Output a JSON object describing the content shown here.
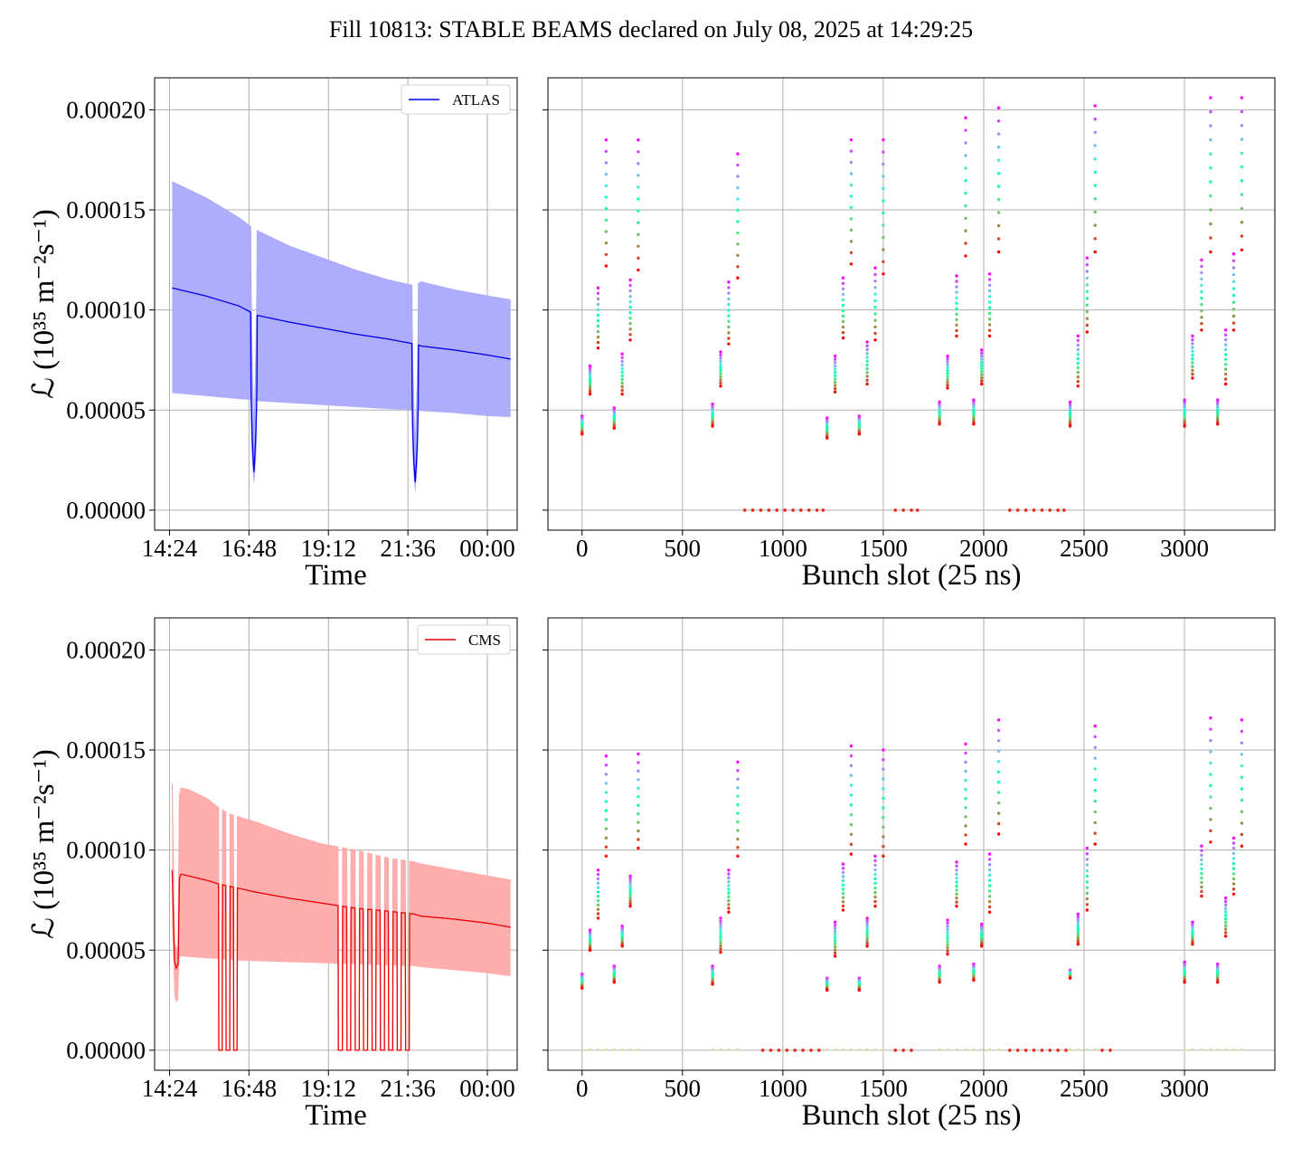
{
  "title": "Fill 10813: STABLE BEAMS declared on July 08, 2025 at 14:29:25",
  "colors": {
    "atlas_line": "#0000ee",
    "atlas_band": "#a9a9fb",
    "cms_line": "#ee0000",
    "cms_band": "#ffaaaa",
    "grid": "#b0b0b0"
  },
  "chart_data": [
    {
      "id": "atlas-time",
      "type": "line",
      "xlabel": "Time",
      "ylabel": "ℒ (10³⁵ m⁻²s⁻¹)",
      "x_ticks": [
        "14:24",
        "16:48",
        "19:12",
        "21:36",
        "00:00"
      ],
      "x_tick_hours": [
        14.4,
        16.8,
        19.2,
        21.6,
        24.0
      ],
      "xlim_hours": [
        13.95,
        24.9
      ],
      "y_ticks": [
        "0.00000",
        "0.00005",
        "0.00010",
        "0.00015",
        "0.00020"
      ],
      "y_tick_values": [
        0.0,
        5e-05,
        0.0001,
        0.00015,
        0.0002
      ],
      "ylim": [
        -1e-05,
        0.000216
      ],
      "grid": true,
      "legend": {
        "label": "ATLAS",
        "position": "top-right"
      },
      "series": [
        {
          "name": "ATLAS",
          "role": "mean",
          "x": [
            14.48,
            15.5,
            16.5,
            16.9,
            17.0,
            18.0,
            19.0,
            20.0,
            21.0,
            21.8,
            22.0,
            23.0,
            24.0,
            24.7
          ],
          "y": [
            0.000111,
            0.000107,
            0.000102,
            9.85e-05,
            9.75e-05,
            9.4e-05,
            9.1e-05,
            8.8e-05,
            8.55e-05,
            8.3e-05,
            8.2e-05,
            8e-05,
            7.75e-05,
            7.55e-05
          ]
        },
        {
          "name": "",
          "role": "band-upper",
          "x": [
            14.48,
            15.5,
            16.5,
            16.9,
            17.0,
            18.0,
            19.0,
            20.0,
            21.0,
            21.8,
            22.0,
            23.0,
            24.0,
            24.7
          ],
          "y": [
            0.000164,
            0.000156,
            0.000146,
            0.000141,
            0.00014,
            0.000132,
            0.000126,
            0.00012,
            0.000115,
            0.000112,
            0.000114,
            0.00011,
            0.000107,
            0.000105
          ]
        },
        {
          "name": "",
          "role": "band-lower",
          "x": [
            14.48,
            15.5,
            16.5,
            16.9,
            17.0,
            18.0,
            19.0,
            20.0,
            21.0,
            21.8,
            22.0,
            23.0,
            24.0,
            24.7
          ],
          "y": [
            5.85e-05,
            5.7e-05,
            5.55e-05,
            5.5e-05,
            5.45e-05,
            5.35e-05,
            5.25e-05,
            5.15e-05,
            5.05e-05,
            5e-05,
            4.95e-05,
            4.85e-05,
            4.7e-05,
            4.65e-05
          ]
        }
      ],
      "dips": [
        {
          "x_start": 16.85,
          "x_end": 17.05,
          "min_mean": 1.9e-05,
          "min_lower": 1.3e-05
        },
        {
          "x_start": 21.72,
          "x_end": 21.92,
          "min_mean": 1.4e-05,
          "min_lower": 9e-06
        }
      ]
    },
    {
      "id": "atlas-bunch",
      "type": "scatter",
      "xlabel": "Bunch slot (25 ns)",
      "x_ticks": [
        "0",
        "500",
        "1000",
        "1500",
        "2000",
        "2500",
        "3000"
      ],
      "x_tick_values": [
        0,
        500,
        1000,
        1500,
        2000,
        2500,
        3000
      ],
      "xlim": [
        -170,
        3450
      ],
      "ylim": [
        -1e-05,
        0.000216
      ],
      "grid": true,
      "colormap": "rainbow",
      "trains": [
        {
          "x": 0,
          "min": 3.8e-05,
          "max": 4.7e-05
        },
        {
          "x": 40,
          "min": 5.8e-05,
          "max": 7.2e-05
        },
        {
          "x": 80,
          "min": 8.1e-05,
          "max": 0.000111
        },
        {
          "x": 120,
          "min": 0.000122,
          "max": 0.000185
        },
        {
          "x": 160,
          "min": 4.1e-05,
          "max": 5.1e-05
        },
        {
          "x": 200,
          "min": 5.8e-05,
          "max": 7.8e-05
        },
        {
          "x": 240,
          "min": 8.5e-05,
          "max": 0.000115
        },
        {
          "x": 280,
          "min": 0.00012,
          "max": 0.000185
        },
        {
          "x": 650,
          "min": 4.2e-05,
          "max": 5.3e-05
        },
        {
          "x": 690,
          "min": 6.2e-05,
          "max": 7.9e-05
        },
        {
          "x": 730,
          "min": 8.3e-05,
          "max": 0.000114
        },
        {
          "x": 775,
          "min": 0.000116,
          "max": 0.000178
        },
        {
          "x": 1220,
          "min": 3.6e-05,
          "max": 4.6e-05
        },
        {
          "x": 1260,
          "min": 5.9e-05,
          "max": 7.7e-05
        },
        {
          "x": 1300,
          "min": 8.6e-05,
          "max": 0.000116
        },
        {
          "x": 1340,
          "min": 0.000123,
          "max": 0.000185
        },
        {
          "x": 1380,
          "min": 3.8e-05,
          "max": 4.7e-05
        },
        {
          "x": 1420,
          "min": 6.3e-05,
          "max": 8.4e-05
        },
        {
          "x": 1460,
          "min": 8.5e-05,
          "max": 0.000121
        },
        {
          "x": 1500,
          "min": 0.000118,
          "max": 0.000185
        },
        {
          "x": 1780,
          "min": 4.3e-05,
          "max": 5.4e-05
        },
        {
          "x": 1820,
          "min": 6.1e-05,
          "max": 7.7e-05
        },
        {
          "x": 1865,
          "min": 8.7e-05,
          "max": 0.000117
        },
        {
          "x": 1910,
          "min": 0.000127,
          "max": 0.000196
        },
        {
          "x": 1950,
          "min": 4.3e-05,
          "max": 5.5e-05
        },
        {
          "x": 1990,
          "min": 6.3e-05,
          "max": 8e-05
        },
        {
          "x": 2030,
          "min": 8.7e-05,
          "max": 0.000118
        },
        {
          "x": 2075,
          "min": 0.000129,
          "max": 0.000201
        },
        {
          "x": 2430,
          "min": 4.2e-05,
          "max": 5.4e-05
        },
        {
          "x": 2470,
          "min": 6.2e-05,
          "max": 8.7e-05
        },
        {
          "x": 2515,
          "min": 8.9e-05,
          "max": 0.000126
        },
        {
          "x": 2555,
          "min": 0.000129,
          "max": 0.000202
        },
        {
          "x": 3000,
          "min": 4.2e-05,
          "max": 5.5e-05
        },
        {
          "x": 3040,
          "min": 6.6e-05,
          "max": 8.7e-05
        },
        {
          "x": 3085,
          "min": 9e-05,
          "max": 0.000125
        },
        {
          "x": 3130,
          "min": 0.000129,
          "max": 0.000206
        },
        {
          "x": 3165,
          "min": 4.3e-05,
          "max": 5.5e-05
        },
        {
          "x": 3205,
          "min": 6.3e-05,
          "max": 9e-05
        },
        {
          "x": 3245,
          "min": 9e-05,
          "max": 0.000128
        },
        {
          "x": 3285,
          "min": 0.00013,
          "max": 0.000206
        }
      ],
      "zero_points": [
        810,
        850,
        890,
        930,
        970,
        1010,
        1050,
        1090,
        1130,
        1170,
        1200,
        1560,
        1600,
        1640,
        1670,
        2130,
        2170,
        2210,
        2250,
        2290,
        2330,
        2370,
        2400
      ]
    },
    {
      "id": "cms-time",
      "type": "line",
      "xlabel": "Time",
      "ylabel": "ℒ (10³⁵ m⁻²s⁻¹)",
      "x_ticks": [
        "14:24",
        "16:48",
        "19:12",
        "21:36",
        "00:00"
      ],
      "x_tick_hours": [
        14.4,
        16.8,
        19.2,
        21.6,
        24.0
      ],
      "xlim_hours": [
        13.95,
        24.9
      ],
      "y_ticks": [
        "0.00000",
        "0.00005",
        "0.00010",
        "0.00015",
        "0.00020"
      ],
      "y_tick_values": [
        0.0,
        5e-05,
        0.0001,
        0.00015,
        0.0002
      ],
      "ylim": [
        -1e-05,
        0.000216
      ],
      "grid": true,
      "legend": {
        "label": "CMS",
        "position": "top-right"
      },
      "series": [
        {
          "name": "CMS",
          "role": "mean",
          "x": [
            14.48,
            14.55,
            14.6,
            14.66,
            14.7,
            14.75,
            15.0,
            15.5,
            15.9,
            16.2,
            17.0,
            18.0,
            19.0,
            20.0,
            21.0,
            21.8,
            22.0,
            23.0,
            24.0,
            24.7
          ],
          "y": [
            9e-05,
            4.5e-05,
            4.1e-05,
            4.3e-05,
            8.6e-05,
            8.8e-05,
            8.7e-05,
            8.5e-05,
            8.3e-05,
            8.2e-05,
            7.9e-05,
            7.6e-05,
            7.35e-05,
            7.1e-05,
            6.95e-05,
            6.8e-05,
            6.7e-05,
            6.55e-05,
            6.35e-05,
            6.15e-05
          ]
        },
        {
          "name": "",
          "role": "band-upper",
          "x": [
            14.48,
            14.55,
            14.6,
            14.66,
            14.7,
            14.75,
            15.0,
            15.5,
            15.9,
            16.2,
            17.0,
            18.0,
            19.0,
            20.0,
            21.0,
            21.8,
            22.0,
            23.0,
            24.0,
            24.7
          ],
          "y": [
            0.000133,
            5.5e-05,
            5e-05,
            5.2e-05,
            0.000127,
            0.000131,
            0.00013,
            0.000126,
            0.000121,
            0.000118,
            0.000114,
            0.000108,
            0.000103,
            0.0001,
            9.6e-05,
            9.4e-05,
            9.3e-05,
            9e-05,
            8.7e-05,
            8.5e-05
          ]
        },
        {
          "name": "",
          "role": "band-lower",
          "x": [
            14.48,
            14.55,
            14.6,
            14.66,
            14.7,
            14.75,
            15.0,
            15.5,
            15.9,
            16.2,
            17.0,
            18.0,
            19.0,
            20.0,
            21.0,
            21.8,
            22.0,
            23.0,
            24.0,
            24.7
          ],
          "y": [
            6.2e-05,
            2.7e-05,
            2.4e-05,
            2.5e-05,
            4.6e-05,
            4.7e-05,
            4.65e-05,
            4.6e-05,
            4.55e-05,
            4.5e-05,
            4.45e-05,
            4.4e-05,
            4.35e-05,
            4.3e-05,
            4.25e-05,
            4.2e-05,
            4.15e-05,
            4e-05,
            3.85e-05,
            3.7e-05
          ]
        }
      ],
      "dropouts": [
        {
          "x_start": 15.88,
          "x_end": 16.45,
          "pattern": [
            0,
            1,
            0,
            1,
            0
          ]
        },
        {
          "x_start": 19.5,
          "x_end": 21.65,
          "pattern": [
            0,
            1,
            0,
            1,
            0,
            1,
            0,
            1,
            0,
            1,
            0,
            1,
            0,
            1,
            0,
            1,
            0
          ]
        }
      ]
    },
    {
      "id": "cms-bunch",
      "type": "scatter",
      "xlabel": "Bunch slot (25 ns)",
      "x_ticks": [
        "0",
        "500",
        "1000",
        "1500",
        "2000",
        "2500",
        "3000"
      ],
      "x_tick_values": [
        0,
        500,
        1000,
        1500,
        2000,
        2500,
        3000
      ],
      "xlim": [
        -170,
        3450
      ],
      "ylim": [
        -1e-05,
        0.000216
      ],
      "grid": true,
      "colormap": "rainbow",
      "trains": [
        {
          "x": 0,
          "min": 3.1e-05,
          "max": 3.8e-05
        },
        {
          "x": 40,
          "min": 5e-05,
          "max": 6e-05
        },
        {
          "x": 80,
          "min": 6.6e-05,
          "max": 9e-05
        },
        {
          "x": 120,
          "min": 9.7e-05,
          "max": 0.000147
        },
        {
          "x": 160,
          "min": 3.4e-05,
          "max": 4.2e-05
        },
        {
          "x": 200,
          "min": 5.2e-05,
          "max": 6.2e-05
        },
        {
          "x": 240,
          "min": 7.2e-05,
          "max": 8.7e-05
        },
        {
          "x": 280,
          "min": 0.000101,
          "max": 0.000148
        },
        {
          "x": 650,
          "min": 3.3e-05,
          "max": 4.2e-05
        },
        {
          "x": 690,
          "min": 4.9e-05,
          "max": 6.6e-05
        },
        {
          "x": 730,
          "min": 6.9e-05,
          "max": 9e-05
        },
        {
          "x": 775,
          "min": 9.7e-05,
          "max": 0.000144
        },
        {
          "x": 1220,
          "min": 3e-05,
          "max": 3.6e-05
        },
        {
          "x": 1260,
          "min": 4.7e-05,
          "max": 6.4e-05
        },
        {
          "x": 1300,
          "min": 7e-05,
          "max": 9.3e-05
        },
        {
          "x": 1340,
          "min": 9.8e-05,
          "max": 0.000152
        },
        {
          "x": 1380,
          "min": 3e-05,
          "max": 3.6e-05
        },
        {
          "x": 1420,
          "min": 5.2e-05,
          "max": 6.6e-05
        },
        {
          "x": 1460,
          "min": 7.2e-05,
          "max": 9.7e-05
        },
        {
          "x": 1500,
          "min": 9.7e-05,
          "max": 0.00015
        },
        {
          "x": 1780,
          "min": 3.4e-05,
          "max": 4.2e-05
        },
        {
          "x": 1820,
          "min": 4.8e-05,
          "max": 6.5e-05
        },
        {
          "x": 1865,
          "min": 7.2e-05,
          "max": 9.4e-05
        },
        {
          "x": 1910,
          "min": 0.000103,
          "max": 0.000153
        },
        {
          "x": 1950,
          "min": 3.5e-05,
          "max": 4.3e-05
        },
        {
          "x": 1990,
          "min": 5.2e-05,
          "max": 6.3e-05
        },
        {
          "x": 2030,
          "min": 6.9e-05,
          "max": 9.8e-05
        },
        {
          "x": 2075,
          "min": 0.000108,
          "max": 0.000165
        },
        {
          "x": 2430,
          "min": 3.6e-05,
          "max": 4e-05
        },
        {
          "x": 2470,
          "min": 5.3e-05,
          "max": 6.8e-05
        },
        {
          "x": 2515,
          "min": 7e-05,
          "max": 0.000101
        },
        {
          "x": 2555,
          "min": 0.000103,
          "max": 0.000162
        },
        {
          "x": 3000,
          "min": 3.4e-05,
          "max": 4.4e-05
        },
        {
          "x": 3040,
          "min": 5.3e-05,
          "max": 6.4e-05
        },
        {
          "x": 3085,
          "min": 7.7e-05,
          "max": 0.000102
        },
        {
          "x": 3130,
          "min": 0.000104,
          "max": 0.000166
        },
        {
          "x": 3165,
          "min": 3.4e-05,
          "max": 4.3e-05
        },
        {
          "x": 3205,
          "min": 5.7e-05,
          "max": 7.6e-05
        },
        {
          "x": 3245,
          "min": 7.8e-05,
          "max": 0.000106
        },
        {
          "x": 3285,
          "min": 0.000102,
          "max": 0.000165
        }
      ],
      "zero_points": [
        900,
        940,
        980,
        1020,
        1060,
        1100,
        1140,
        1180,
        1560,
        1600,
        1640,
        2130,
        2170,
        2210,
        2250,
        2290,
        2330,
        2370,
        2410,
        2590,
        2630
      ],
      "faint_zero_points": [
        0,
        40,
        80,
        120,
        160,
        200,
        240,
        280,
        650,
        690,
        730,
        775,
        1220,
        1260,
        1300,
        1340,
        1380,
        1420,
        1460,
        1500,
        1780,
        1820,
        1865,
        1910,
        1950,
        1990,
        2030,
        2075,
        2430,
        2470,
        2515,
        2555,
        3000,
        3040,
        3085,
        3130,
        3165,
        3205,
        3245,
        3285
      ]
    }
  ]
}
